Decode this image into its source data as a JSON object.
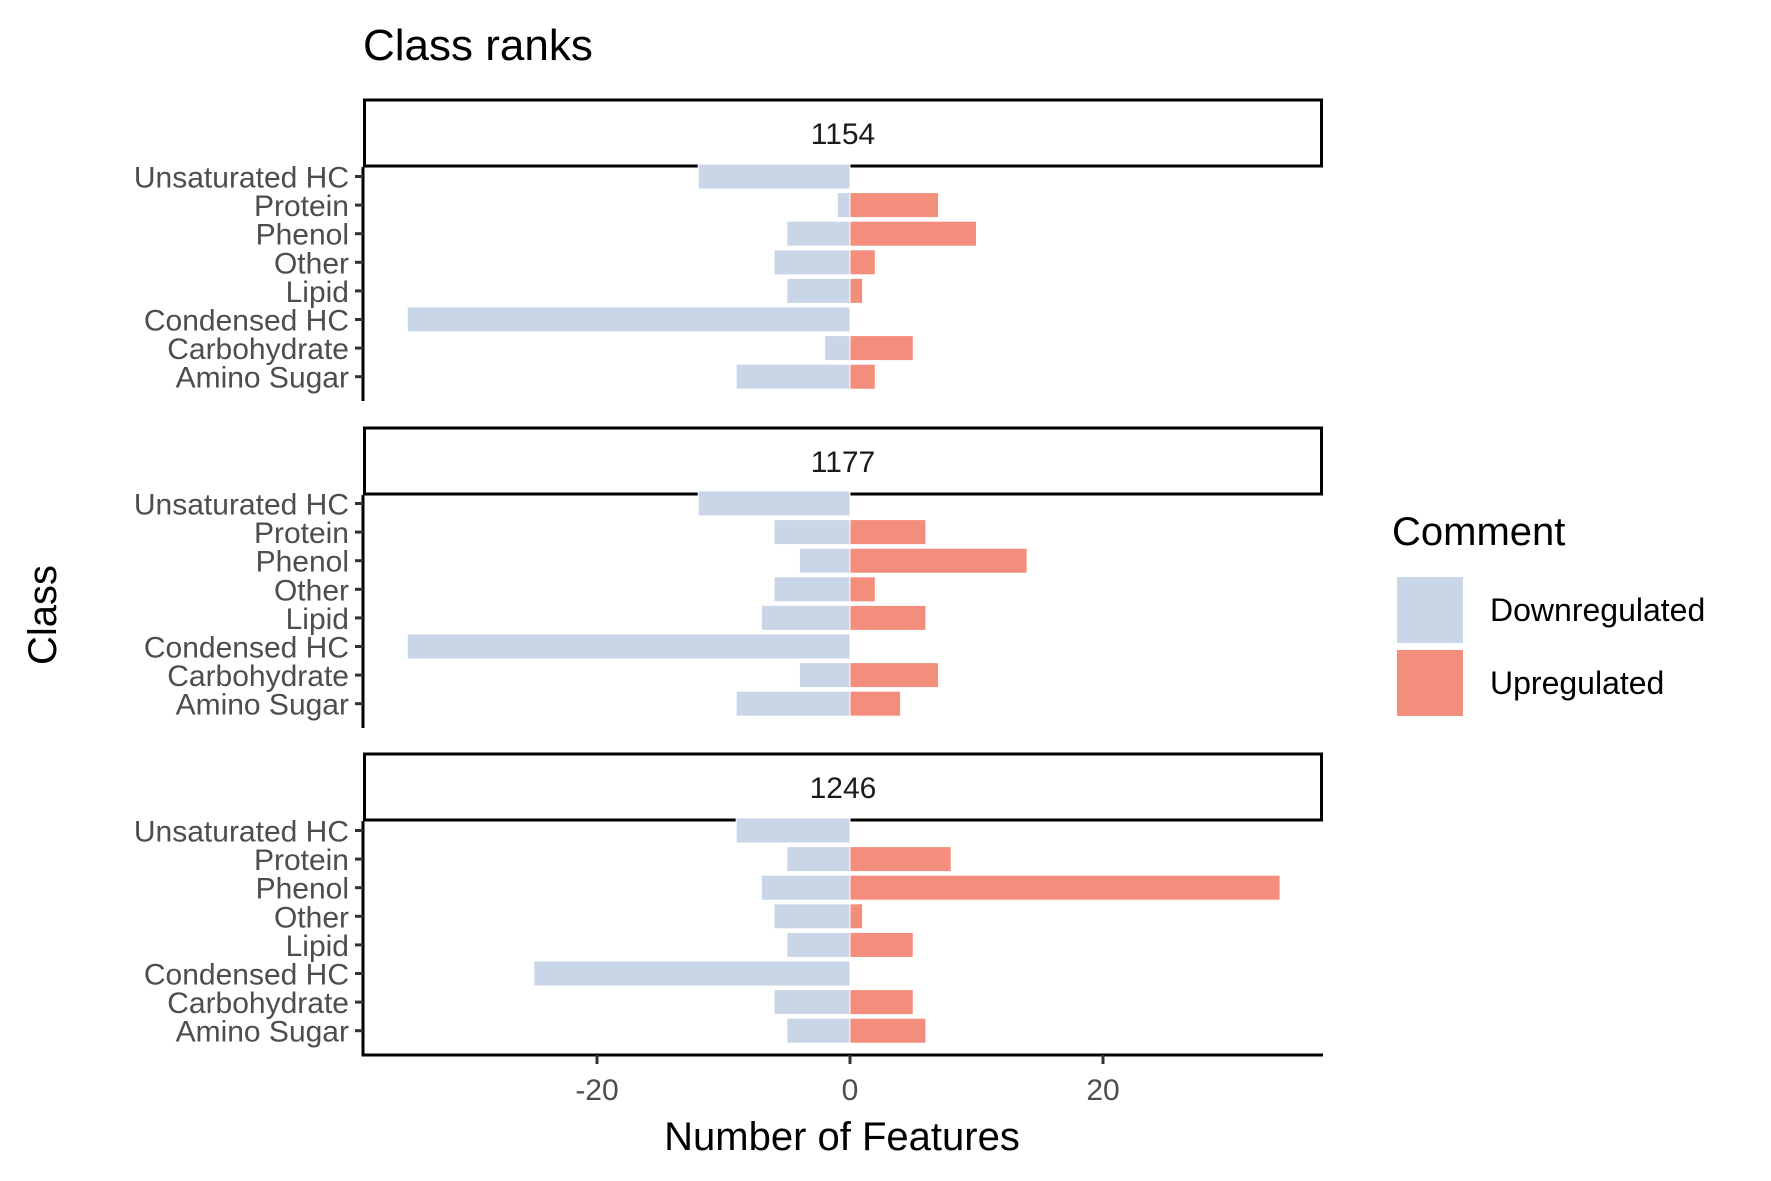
{
  "chart_data": {
    "type": "bar",
    "orientation": "horizontal",
    "title": "Class ranks",
    "xlabel": "Number of Features",
    "ylabel": "Class",
    "xlim": [
      -38,
      38
    ],
    "xticks": [
      -20,
      0,
      20
    ],
    "xtick_labels": [
      "-20",
      "0",
      "20"
    ],
    "categories": [
      "Unsaturated HC",
      "Protein",
      "Phenol",
      "Other",
      "Lipid",
      "Condensed HC",
      "Carbohydrate",
      "Amino Sugar"
    ],
    "grid": false,
    "legend": {
      "title": "Comment",
      "position": "right",
      "entries": [
        {
          "name": "Downregulated",
          "color": "#c9d6e8"
        },
        {
          "name": "Upregulated",
          "color": "#f28e7b"
        }
      ]
    },
    "facets": [
      {
        "label": "1154",
        "series": [
          {
            "name": "Downregulated",
            "values": [
              -12,
              -1,
              -5,
              -6,
              -5,
              -35,
              -2,
              -9
            ]
          },
          {
            "name": "Upregulated",
            "values": [
              0,
              7,
              10,
              2,
              1,
              0,
              5,
              2
            ]
          }
        ]
      },
      {
        "label": "1177",
        "series": [
          {
            "name": "Downregulated",
            "values": [
              -12,
              -6,
              -4,
              -6,
              -7,
              -35,
              -4,
              -9
            ]
          },
          {
            "name": "Upregulated",
            "values": [
              0,
              6,
              14,
              2,
              6,
              0,
              7,
              4
            ]
          }
        ]
      },
      {
        "label": "1246",
        "series": [
          {
            "name": "Downregulated",
            "values": [
              -9,
              -5,
              -7,
              -6,
              -5,
              -25,
              -6,
              -5
            ]
          },
          {
            "name": "Upregulated",
            "values": [
              0,
              8,
              34,
              1,
              5,
              0,
              5,
              6
            ]
          }
        ]
      }
    ]
  }
}
